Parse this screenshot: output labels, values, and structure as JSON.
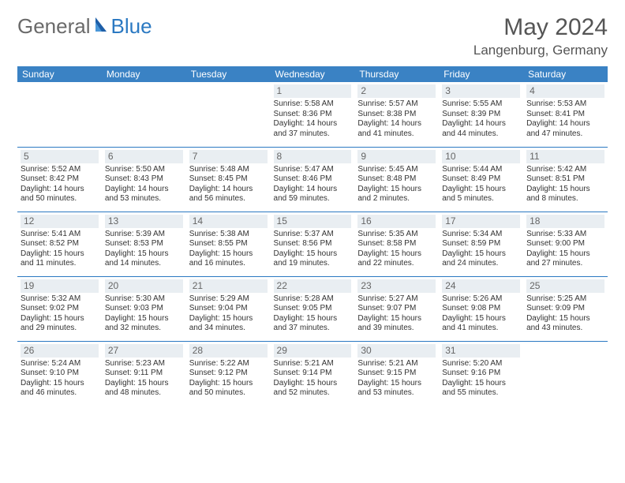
{
  "brand": {
    "text1": "General",
    "text2": "Blue"
  },
  "title": "May 2024",
  "location": "Langenburg, Germany",
  "headers": [
    "Sunday",
    "Monday",
    "Tuesday",
    "Wednesday",
    "Thursday",
    "Friday",
    "Saturday"
  ],
  "colors": {
    "header_bg": "#3a82c4",
    "row_border": "#2b79c2",
    "daynum_bg": "#e9eef2",
    "brand_gray": "#6a6a6a",
    "brand_blue": "#2b79c2"
  },
  "weeks": [
    [
      null,
      null,
      null,
      {
        "n": "1",
        "sr": "Sunrise: 5:58 AM",
        "ss": "Sunset: 8:36 PM",
        "d1": "Daylight: 14 hours",
        "d2": "and 37 minutes."
      },
      {
        "n": "2",
        "sr": "Sunrise: 5:57 AM",
        "ss": "Sunset: 8:38 PM",
        "d1": "Daylight: 14 hours",
        "d2": "and 41 minutes."
      },
      {
        "n": "3",
        "sr": "Sunrise: 5:55 AM",
        "ss": "Sunset: 8:39 PM",
        "d1": "Daylight: 14 hours",
        "d2": "and 44 minutes."
      },
      {
        "n": "4",
        "sr": "Sunrise: 5:53 AM",
        "ss": "Sunset: 8:41 PM",
        "d1": "Daylight: 14 hours",
        "d2": "and 47 minutes."
      }
    ],
    [
      {
        "n": "5",
        "sr": "Sunrise: 5:52 AM",
        "ss": "Sunset: 8:42 PM",
        "d1": "Daylight: 14 hours",
        "d2": "and 50 minutes."
      },
      {
        "n": "6",
        "sr": "Sunrise: 5:50 AM",
        "ss": "Sunset: 8:43 PM",
        "d1": "Daylight: 14 hours",
        "d2": "and 53 minutes."
      },
      {
        "n": "7",
        "sr": "Sunrise: 5:48 AM",
        "ss": "Sunset: 8:45 PM",
        "d1": "Daylight: 14 hours",
        "d2": "and 56 minutes."
      },
      {
        "n": "8",
        "sr": "Sunrise: 5:47 AM",
        "ss": "Sunset: 8:46 PM",
        "d1": "Daylight: 14 hours",
        "d2": "and 59 minutes."
      },
      {
        "n": "9",
        "sr": "Sunrise: 5:45 AM",
        "ss": "Sunset: 8:48 PM",
        "d1": "Daylight: 15 hours",
        "d2": "and 2 minutes."
      },
      {
        "n": "10",
        "sr": "Sunrise: 5:44 AM",
        "ss": "Sunset: 8:49 PM",
        "d1": "Daylight: 15 hours",
        "d2": "and 5 minutes."
      },
      {
        "n": "11",
        "sr": "Sunrise: 5:42 AM",
        "ss": "Sunset: 8:51 PM",
        "d1": "Daylight: 15 hours",
        "d2": "and 8 minutes."
      }
    ],
    [
      {
        "n": "12",
        "sr": "Sunrise: 5:41 AM",
        "ss": "Sunset: 8:52 PM",
        "d1": "Daylight: 15 hours",
        "d2": "and 11 minutes."
      },
      {
        "n": "13",
        "sr": "Sunrise: 5:39 AM",
        "ss": "Sunset: 8:53 PM",
        "d1": "Daylight: 15 hours",
        "d2": "and 14 minutes."
      },
      {
        "n": "14",
        "sr": "Sunrise: 5:38 AM",
        "ss": "Sunset: 8:55 PM",
        "d1": "Daylight: 15 hours",
        "d2": "and 16 minutes."
      },
      {
        "n": "15",
        "sr": "Sunrise: 5:37 AM",
        "ss": "Sunset: 8:56 PM",
        "d1": "Daylight: 15 hours",
        "d2": "and 19 minutes."
      },
      {
        "n": "16",
        "sr": "Sunrise: 5:35 AM",
        "ss": "Sunset: 8:58 PM",
        "d1": "Daylight: 15 hours",
        "d2": "and 22 minutes."
      },
      {
        "n": "17",
        "sr": "Sunrise: 5:34 AM",
        "ss": "Sunset: 8:59 PM",
        "d1": "Daylight: 15 hours",
        "d2": "and 24 minutes."
      },
      {
        "n": "18",
        "sr": "Sunrise: 5:33 AM",
        "ss": "Sunset: 9:00 PM",
        "d1": "Daylight: 15 hours",
        "d2": "and 27 minutes."
      }
    ],
    [
      {
        "n": "19",
        "sr": "Sunrise: 5:32 AM",
        "ss": "Sunset: 9:02 PM",
        "d1": "Daylight: 15 hours",
        "d2": "and 29 minutes."
      },
      {
        "n": "20",
        "sr": "Sunrise: 5:30 AM",
        "ss": "Sunset: 9:03 PM",
        "d1": "Daylight: 15 hours",
        "d2": "and 32 minutes."
      },
      {
        "n": "21",
        "sr": "Sunrise: 5:29 AM",
        "ss": "Sunset: 9:04 PM",
        "d1": "Daylight: 15 hours",
        "d2": "and 34 minutes."
      },
      {
        "n": "22",
        "sr": "Sunrise: 5:28 AM",
        "ss": "Sunset: 9:05 PM",
        "d1": "Daylight: 15 hours",
        "d2": "and 37 minutes."
      },
      {
        "n": "23",
        "sr": "Sunrise: 5:27 AM",
        "ss": "Sunset: 9:07 PM",
        "d1": "Daylight: 15 hours",
        "d2": "and 39 minutes."
      },
      {
        "n": "24",
        "sr": "Sunrise: 5:26 AM",
        "ss": "Sunset: 9:08 PM",
        "d1": "Daylight: 15 hours",
        "d2": "and 41 minutes."
      },
      {
        "n": "25",
        "sr": "Sunrise: 5:25 AM",
        "ss": "Sunset: 9:09 PM",
        "d1": "Daylight: 15 hours",
        "d2": "and 43 minutes."
      }
    ],
    [
      {
        "n": "26",
        "sr": "Sunrise: 5:24 AM",
        "ss": "Sunset: 9:10 PM",
        "d1": "Daylight: 15 hours",
        "d2": "and 46 minutes."
      },
      {
        "n": "27",
        "sr": "Sunrise: 5:23 AM",
        "ss": "Sunset: 9:11 PM",
        "d1": "Daylight: 15 hours",
        "d2": "and 48 minutes."
      },
      {
        "n": "28",
        "sr": "Sunrise: 5:22 AM",
        "ss": "Sunset: 9:12 PM",
        "d1": "Daylight: 15 hours",
        "d2": "and 50 minutes."
      },
      {
        "n": "29",
        "sr": "Sunrise: 5:21 AM",
        "ss": "Sunset: 9:14 PM",
        "d1": "Daylight: 15 hours",
        "d2": "and 52 minutes."
      },
      {
        "n": "30",
        "sr": "Sunrise: 5:21 AM",
        "ss": "Sunset: 9:15 PM",
        "d1": "Daylight: 15 hours",
        "d2": "and 53 minutes."
      },
      {
        "n": "31",
        "sr": "Sunrise: 5:20 AM",
        "ss": "Sunset: 9:16 PM",
        "d1": "Daylight: 15 hours",
        "d2": "and 55 minutes."
      },
      null
    ]
  ]
}
